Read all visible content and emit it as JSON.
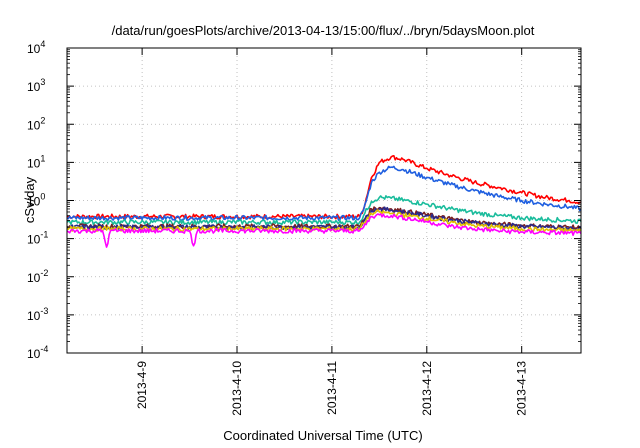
{
  "chart_data": {
    "type": "line",
    "title": "/data/run/goesPlots/archive/2013-04-13/15:00/flux/../bryn/5daysMoon.plot",
    "xlabel": "Coordinated Universal Time (UTC)",
    "ylabel": "cSv/day",
    "y_scale": "log",
    "ylim": [
      0.0001,
      10000
    ],
    "xlim": [
      "2013-04-08 05:00",
      "2013-04-13 15:00"
    ],
    "grid": true,
    "legend": "none",
    "y_ticks": [
      {
        "value": 0.0001,
        "base": "10",
        "exp": "-4"
      },
      {
        "value": 0.001,
        "base": "10",
        "exp": "-3"
      },
      {
        "value": 0.01,
        "base": "10",
        "exp": "-2"
      },
      {
        "value": 0.1,
        "base": "10",
        "exp": "-1"
      },
      {
        "value": 1,
        "base": "10",
        "exp": "0"
      },
      {
        "value": 10,
        "base": "10",
        "exp": "1"
      },
      {
        "value": 100,
        "base": "10",
        "exp": "2"
      },
      {
        "value": 1000,
        "base": "10",
        "exp": "3"
      },
      {
        "value": 10000,
        "base": "10",
        "exp": "4"
      }
    ],
    "x_ticks": [
      {
        "value": "2013-04-09 00:00",
        "label": "2013-4-9"
      },
      {
        "value": "2013-04-10 00:00",
        "label": "2013-4-10"
      },
      {
        "value": "2013-04-11 00:00",
        "label": "2013-4-11"
      },
      {
        "value": "2013-04-12 00:00",
        "label": "2013-4-12"
      },
      {
        "value": "2013-04-13 00:00",
        "label": "2013-4-13"
      }
    ],
    "series": [
      {
        "color": "#ff0000",
        "points": [
          [
            "2013-04-08 05:00",
            0.38
          ],
          [
            "2013-04-11 07:00",
            0.38
          ],
          [
            "2013-04-11 08:00",
            0.6
          ],
          [
            "2013-04-11 10:00",
            4.0
          ],
          [
            "2013-04-11 12:00",
            10.0
          ],
          [
            "2013-04-11 15:00",
            14.0
          ],
          [
            "2013-04-11 18:00",
            12.0
          ],
          [
            "2013-04-12 00:00",
            7.0
          ],
          [
            "2013-04-12 06:00",
            4.5
          ],
          [
            "2013-04-12 12:00",
            3.0
          ],
          [
            "2013-04-12 18:00",
            2.2
          ],
          [
            "2013-04-13 00:00",
            1.6
          ],
          [
            "2013-04-13 06:00",
            1.2
          ],
          [
            "2013-04-13 12:00",
            1.0
          ],
          [
            "2013-04-13 15:00",
            0.9
          ]
        ]
      },
      {
        "color": "#1f5fe0",
        "points": [
          [
            "2013-04-08 05:00",
            0.35
          ],
          [
            "2013-04-11 07:00",
            0.35
          ],
          [
            "2013-04-11 08:00",
            0.55
          ],
          [
            "2013-04-11 10:00",
            3.0
          ],
          [
            "2013-04-11 12:00",
            5.5
          ],
          [
            "2013-04-11 15:00",
            7.5
          ],
          [
            "2013-04-11 18:00",
            6.5
          ],
          [
            "2013-04-12 00:00",
            4.0
          ],
          [
            "2013-04-12 06:00",
            2.6
          ],
          [
            "2013-04-12 12:00",
            1.8
          ],
          [
            "2013-04-12 18:00",
            1.3
          ],
          [
            "2013-04-13 00:00",
            1.0
          ],
          [
            "2013-04-13 06:00",
            0.8
          ],
          [
            "2013-04-13 12:00",
            0.68
          ],
          [
            "2013-04-13 15:00",
            0.6
          ]
        ]
      },
      {
        "color": "#1abc9c",
        "points": [
          [
            "2013-04-08 05:00",
            0.27
          ],
          [
            "2013-04-11 07:00",
            0.27
          ],
          [
            "2013-04-11 08:00",
            0.4
          ],
          [
            "2013-04-11 10:00",
            0.95
          ],
          [
            "2013-04-11 12:00",
            1.2
          ],
          [
            "2013-04-11 15:00",
            1.15
          ],
          [
            "2013-04-12 00:00",
            0.8
          ],
          [
            "2013-04-12 06:00",
            0.6
          ],
          [
            "2013-04-12 12:00",
            0.48
          ],
          [
            "2013-04-12 18:00",
            0.4
          ],
          [
            "2013-04-13 00:00",
            0.35
          ],
          [
            "2013-04-13 06:00",
            0.32
          ],
          [
            "2013-04-13 12:00",
            0.3
          ],
          [
            "2013-04-13 15:00",
            0.28
          ]
        ]
      },
      {
        "color": "#7a1f1f",
        "points": [
          [
            "2013-04-08 05:00",
            0.21
          ],
          [
            "2013-04-11 07:00",
            0.21
          ],
          [
            "2013-04-11 08:00",
            0.3
          ],
          [
            "2013-04-11 10:00",
            0.6
          ],
          [
            "2013-04-11 12:00",
            0.65
          ],
          [
            "2013-04-11 15:00",
            0.6
          ],
          [
            "2013-04-12 00:00",
            0.42
          ],
          [
            "2013-04-12 06:00",
            0.33
          ],
          [
            "2013-04-12 12:00",
            0.27
          ],
          [
            "2013-04-12 18:00",
            0.24
          ],
          [
            "2013-04-13 00:00",
            0.22
          ],
          [
            "2013-04-13 06:00",
            0.21
          ],
          [
            "2013-04-13 12:00",
            0.2
          ],
          [
            "2013-04-13 15:00",
            0.19
          ]
        ]
      },
      {
        "color": "#2a2a8a",
        "points": [
          [
            "2013-04-08 05:00",
            0.2
          ],
          [
            "2013-04-11 07:00",
            0.2
          ],
          [
            "2013-04-11 08:00",
            0.28
          ],
          [
            "2013-04-11 10:00",
            0.55
          ],
          [
            "2013-04-11 12:00",
            0.6
          ],
          [
            "2013-04-11 15:00",
            0.56
          ],
          [
            "2013-04-12 00:00",
            0.4
          ],
          [
            "2013-04-12 06:00",
            0.31
          ],
          [
            "2013-04-12 12:00",
            0.26
          ],
          [
            "2013-04-12 18:00",
            0.23
          ],
          [
            "2013-04-13 00:00",
            0.21
          ],
          [
            "2013-04-13 06:00",
            0.2
          ],
          [
            "2013-04-13 12:00",
            0.19
          ],
          [
            "2013-04-13 15:00",
            0.18
          ]
        ]
      },
      {
        "color": "#e0c000",
        "points": [
          [
            "2013-04-08 05:00",
            0.18
          ],
          [
            "2013-04-11 07:00",
            0.18
          ],
          [
            "2013-04-11 08:00",
            0.25
          ],
          [
            "2013-04-11 10:00",
            0.45
          ],
          [
            "2013-04-11 12:00",
            0.5
          ],
          [
            "2013-04-11 15:00",
            0.46
          ],
          [
            "2013-04-12 00:00",
            0.34
          ],
          [
            "2013-04-12 06:00",
            0.27
          ],
          [
            "2013-04-12 12:00",
            0.22
          ],
          [
            "2013-04-12 18:00",
            0.2
          ],
          [
            "2013-04-13 00:00",
            0.18
          ],
          [
            "2013-04-13 06:00",
            0.17
          ],
          [
            "2013-04-13 12:00",
            0.165
          ],
          [
            "2013-04-13 15:00",
            0.16
          ]
        ]
      },
      {
        "color": "#ff00ff",
        "points": [
          [
            "2013-04-08 05:00",
            0.16
          ],
          [
            "2013-04-08 14:00",
            0.16
          ],
          [
            "2013-04-08 15:00",
            0.06
          ],
          [
            "2013-04-08 16:00",
            0.16
          ],
          [
            "2013-04-09 12:00",
            0.16
          ],
          [
            "2013-04-09 13:00",
            0.065
          ],
          [
            "2013-04-09 14:00",
            0.16
          ],
          [
            "2013-04-11 07:00",
            0.16
          ],
          [
            "2013-04-11 08:00",
            0.2
          ],
          [
            "2013-04-11 10:00",
            0.38
          ],
          [
            "2013-04-11 12:00",
            0.42
          ],
          [
            "2013-04-11 15:00",
            0.4
          ],
          [
            "2013-04-12 00:00",
            0.28
          ],
          [
            "2013-04-12 06:00",
            0.21
          ],
          [
            "2013-04-12 12:00",
            0.18
          ],
          [
            "2013-04-12 18:00",
            0.16
          ],
          [
            "2013-04-13 00:00",
            0.15
          ],
          [
            "2013-04-13 06:00",
            0.145
          ],
          [
            "2013-04-13 12:00",
            0.14
          ],
          [
            "2013-04-13 15:00",
            0.135
          ]
        ]
      }
    ]
  }
}
